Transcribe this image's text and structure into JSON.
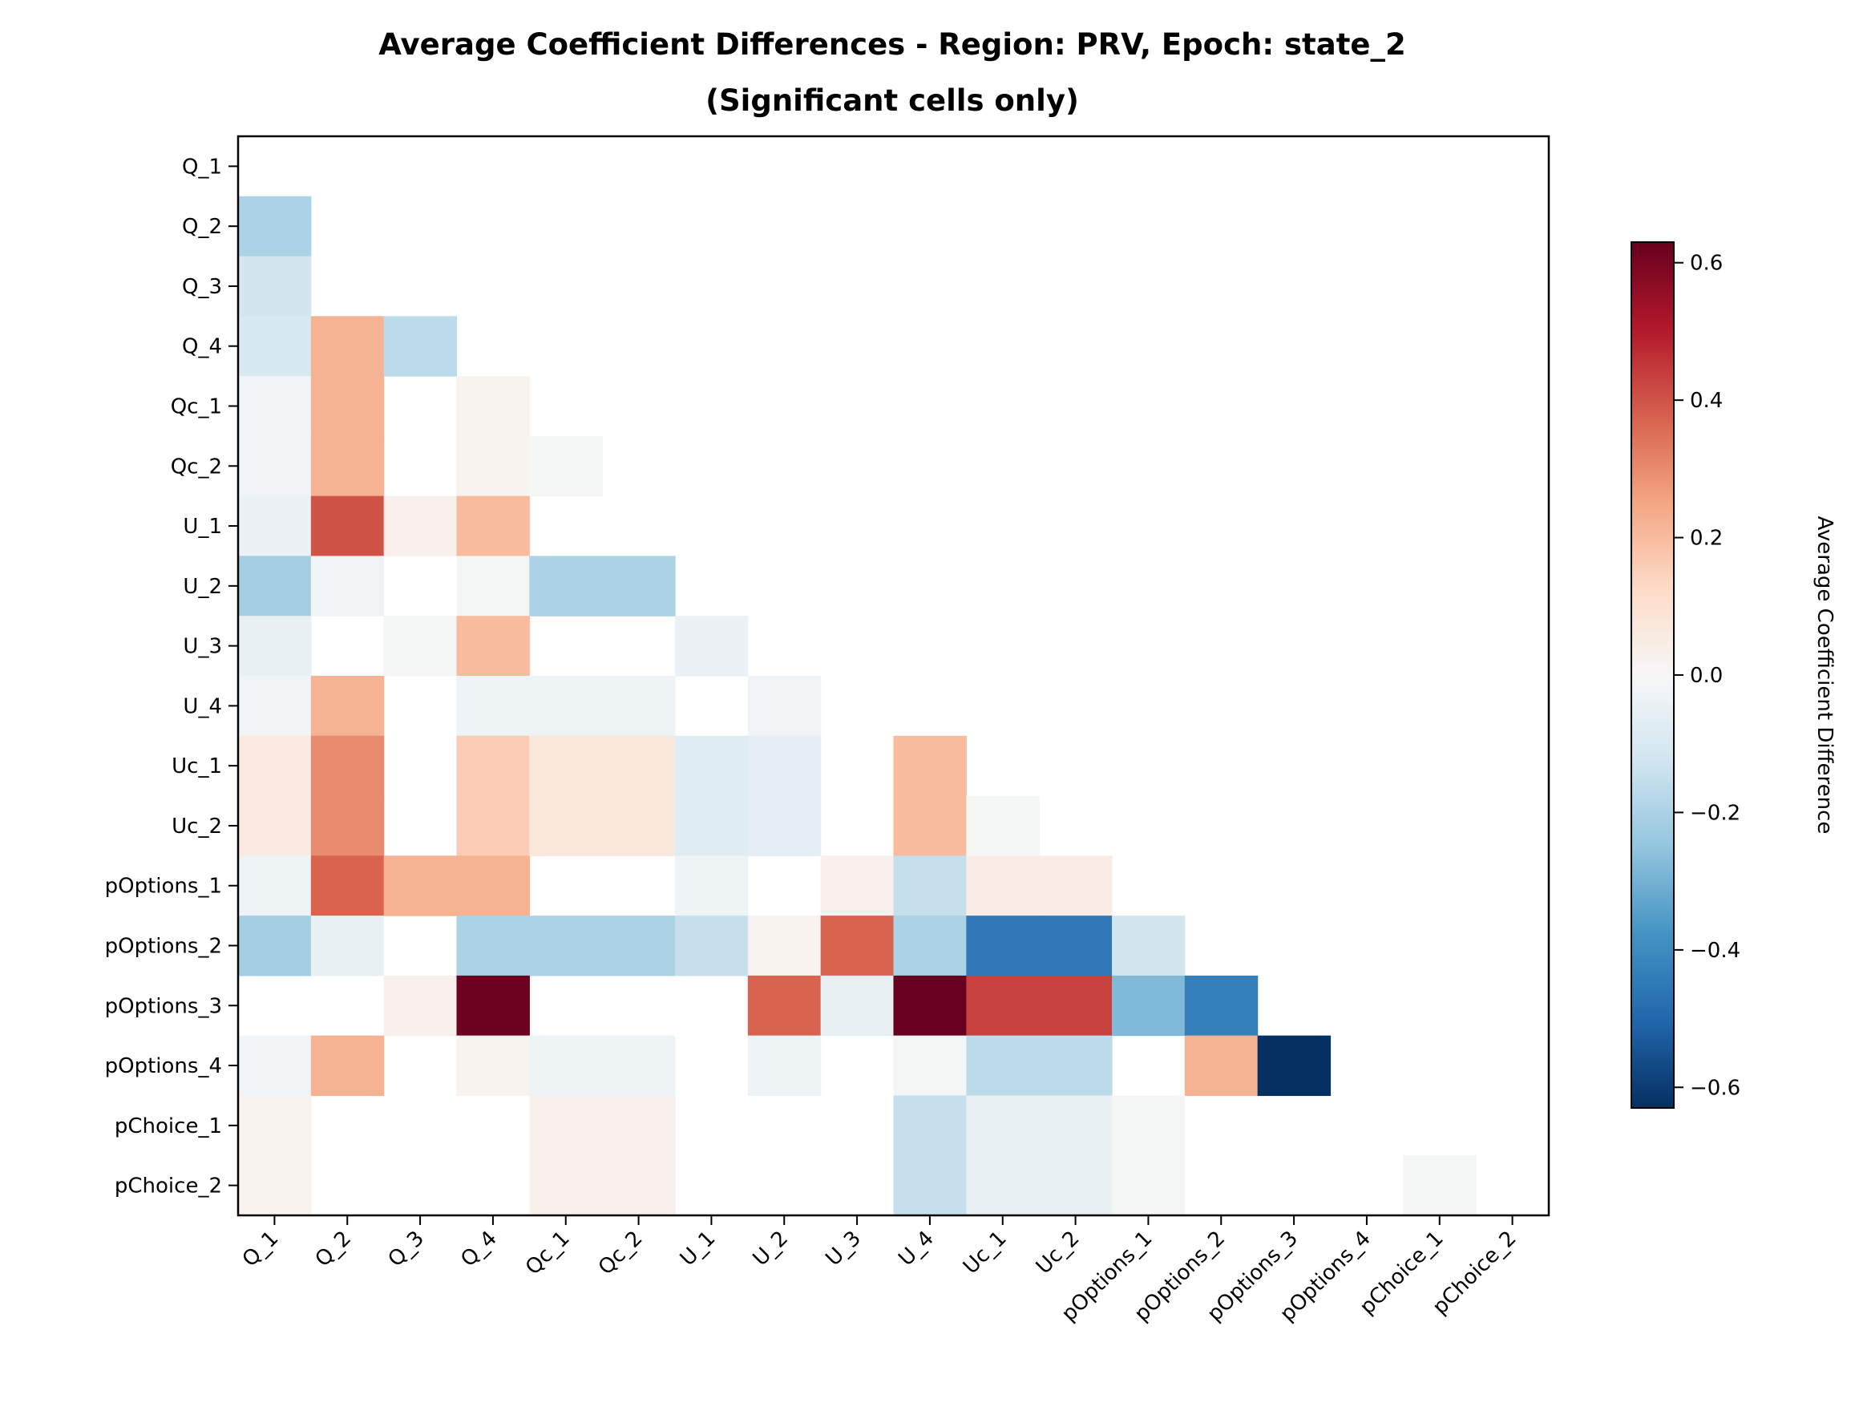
{
  "chart_data": {
    "type": "heatmap",
    "title": "Average Coefficient Differences - Region: PRV, Epoch: state_2",
    "subtitle": "(Significant cells only)",
    "xlabel": "",
    "ylabel": "",
    "labels": [
      "Q_1",
      "Q_2",
      "Q_3",
      "Q_4",
      "Qc_1",
      "Qc_2",
      "U_1",
      "U_2",
      "U_3",
      "U_4",
      "Uc_1",
      "Uc_2",
      "pOptions_1",
      "pOptions_2",
      "pOptions_3",
      "pOptions_4",
      "pChoice_1",
      "pChoice_2"
    ],
    "colorbar": {
      "label": "Average Coefficient Difference",
      "range": [
        -0.63,
        0.63
      ],
      "ticks": [
        -0.6,
        -0.4,
        -0.2,
        0.0,
        0.2,
        0.4,
        0.6
      ],
      "tick_labels": [
        "−0.6",
        "−0.4",
        "−0.2",
        "0.0",
        "0.2",
        "0.4",
        "0.6"
      ],
      "colormap": "RdBu_r"
    },
    "mask": "lower triangle only; non-significant cells blank",
    "values": [
      [
        null,
        null,
        null,
        null,
        null,
        null,
        null,
        null,
        null,
        null,
        null,
        null,
        null,
        null,
        null,
        null,
        null,
        null
      ],
      [
        -0.2,
        null,
        null,
        null,
        null,
        null,
        null,
        null,
        null,
        null,
        null,
        null,
        null,
        null,
        null,
        null,
        null,
        null
      ],
      [
        -0.12,
        null,
        null,
        null,
        null,
        null,
        null,
        null,
        null,
        null,
        null,
        null,
        null,
        null,
        null,
        null,
        null,
        null
      ],
      [
        -0.1,
        0.22,
        -0.17,
        null,
        null,
        null,
        null,
        null,
        null,
        null,
        null,
        null,
        null,
        null,
        null,
        null,
        null,
        null
      ],
      [
        -0.02,
        0.22,
        null,
        0.02,
        null,
        null,
        null,
        null,
        null,
        null,
        null,
        null,
        null,
        null,
        null,
        null,
        null,
        null
      ],
      [
        -0.02,
        0.22,
        null,
        0.02,
        -0.01,
        null,
        null,
        null,
        null,
        null,
        null,
        null,
        null,
        null,
        null,
        null,
        null,
        null
      ],
      [
        -0.04,
        0.4,
        0.03,
        0.2,
        null,
        null,
        null,
        null,
        null,
        null,
        null,
        null,
        null,
        null,
        null,
        null,
        null,
        null
      ],
      [
        -0.22,
        -0.02,
        null,
        -0.01,
        -0.2,
        -0.2,
        null,
        null,
        null,
        null,
        null,
        null,
        null,
        null,
        null,
        null,
        null,
        null
      ],
      [
        -0.05,
        null,
        -0.01,
        0.2,
        null,
        null,
        -0.04,
        null,
        null,
        null,
        null,
        null,
        null,
        null,
        null,
        null,
        null,
        null
      ],
      [
        -0.02,
        0.22,
        null,
        -0.03,
        -0.03,
        -0.03,
        null,
        -0.02,
        null,
        null,
        null,
        null,
        null,
        null,
        null,
        null,
        null,
        null
      ],
      [
        0.06,
        0.3,
        null,
        0.16,
        0.07,
        0.07,
        -0.08,
        -0.06,
        null,
        0.2,
        null,
        null,
        null,
        null,
        null,
        null,
        null,
        null
      ],
      [
        0.06,
        0.3,
        null,
        0.16,
        0.07,
        0.07,
        -0.08,
        -0.06,
        null,
        0.2,
        -0.01,
        null,
        null,
        null,
        null,
        null,
        null,
        null
      ],
      [
        -0.03,
        0.37,
        0.22,
        0.22,
        null,
        null,
        -0.03,
        null,
        0.03,
        -0.15,
        0.05,
        0.05,
        null,
        null,
        null,
        null,
        null,
        null
      ],
      [
        -0.22,
        -0.05,
        null,
        -0.2,
        -0.2,
        -0.2,
        -0.15,
        0.02,
        0.37,
        -0.2,
        -0.45,
        -0.45,
        -0.12,
        null,
        null,
        null,
        null,
        null
      ],
      [
        null,
        null,
        0.03,
        0.62,
        null,
        null,
        null,
        0.37,
        -0.05,
        0.63,
        0.43,
        0.43,
        -0.28,
        -0.43,
        null,
        null,
        null,
        null
      ],
      [
        -0.02,
        0.22,
        null,
        0.02,
        -0.03,
        -0.03,
        null,
        -0.03,
        null,
        -0.01,
        -0.17,
        -0.17,
        null,
        0.22,
        -0.63,
        null,
        null,
        null
      ],
      [
        0.02,
        null,
        null,
        null,
        0.03,
        0.03,
        null,
        null,
        null,
        -0.15,
        -0.05,
        -0.05,
        -0.01,
        null,
        null,
        null,
        null,
        null
      ],
      [
        0.02,
        null,
        null,
        null,
        0.03,
        0.03,
        null,
        null,
        null,
        -0.15,
        -0.05,
        -0.05,
        -0.01,
        null,
        null,
        null,
        -0.01,
        null
      ]
    ]
  }
}
